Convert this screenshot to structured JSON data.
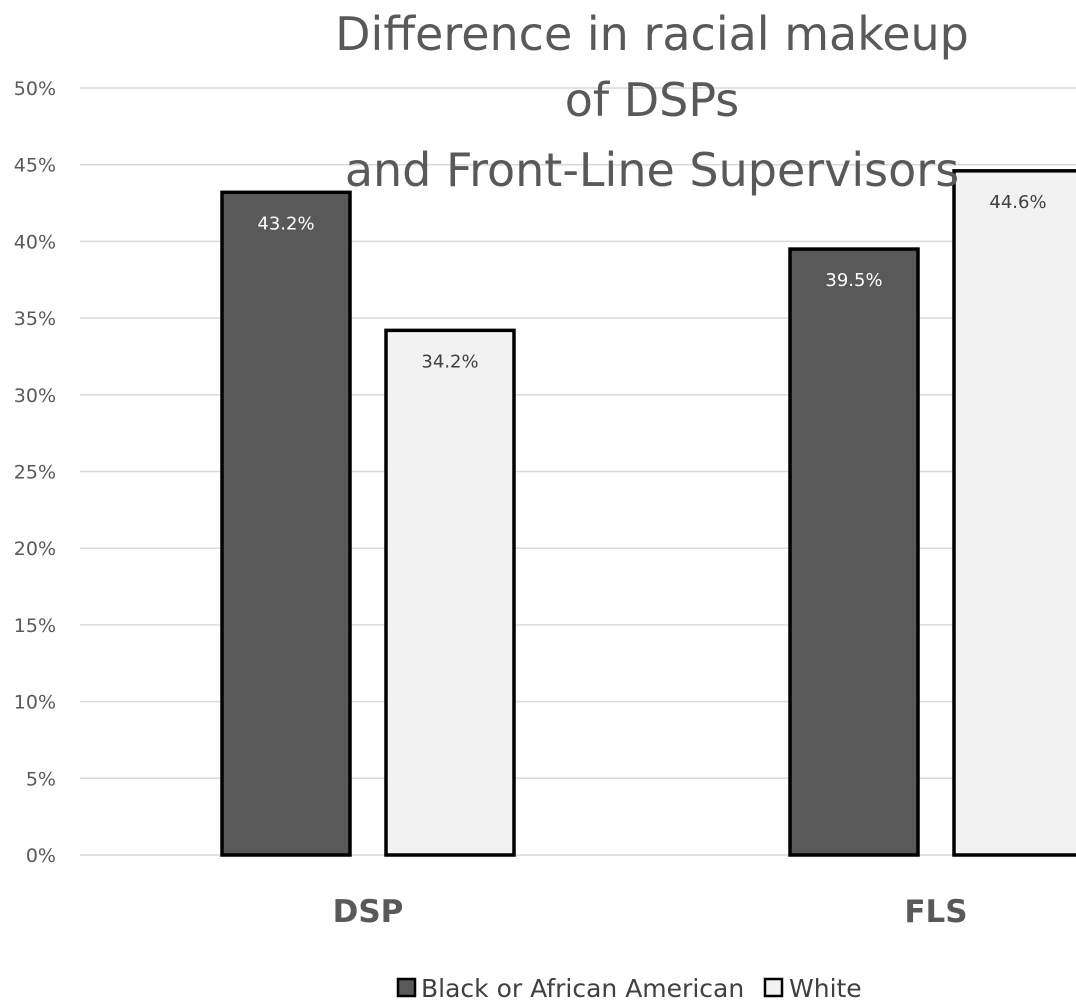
{
  "chart_data": {
    "type": "bar",
    "title_lines": [
      "Difference in racial makeup",
      "of DSPs",
      "and Front-Line Supervisors"
    ],
    "categories": [
      "DSP",
      "FLS"
    ],
    "series": [
      {
        "name": "Black or African American",
        "values": [
          43.2,
          39.5
        ],
        "labels": [
          "43.2%",
          "39.5%"
        ],
        "color": "#595959",
        "label_color": "#ffffff"
      },
      {
        "name": "White",
        "values": [
          34.2,
          44.6
        ],
        "labels": [
          "34.2%",
          "44.6%"
        ],
        "color": "#f2f2f2",
        "label_color": "#404040"
      }
    ],
    "y_ticks": [
      "0%",
      "5%",
      "10%",
      "15%",
      "20%",
      "25%",
      "30%",
      "35%",
      "40%",
      "45%",
      "50%"
    ],
    "ylim": [
      0,
      50
    ],
    "grid": true,
    "legend_position": "bottom",
    "bar_outline_color": "#000000",
    "gridline_color": "#d9d9d9",
    "text_color": "#595959"
  }
}
